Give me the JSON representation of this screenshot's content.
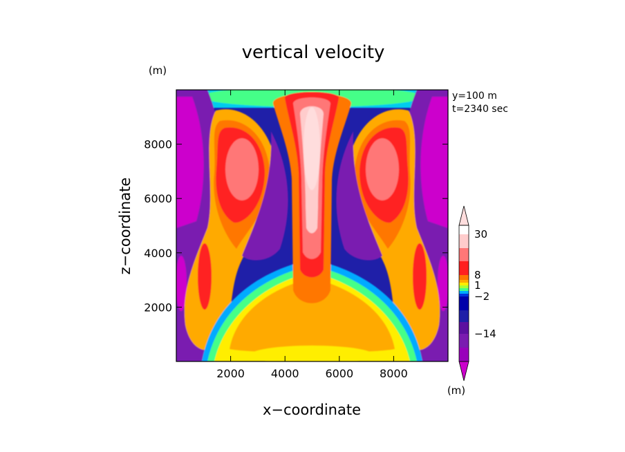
{
  "chart_data": {
    "type": "heatmap",
    "title": "vertical velocity",
    "xlabel": "x−coordinate",
    "ylabel": "z−coordinate",
    "y_unit": "(m)",
    "x_unit": "(m)",
    "info_lines": [
      "y=100 m",
      "t=2340 sec"
    ],
    "xlim": [
      0,
      10000
    ],
    "ylim": [
      0,
      10000
    ],
    "x_ticks": [
      2000,
      4000,
      6000,
      8000
    ],
    "y_ticks": [
      2000,
      4000,
      6000,
      8000
    ],
    "x_tick_labels": [
      "2000",
      "4000",
      "6000",
      "8000"
    ],
    "y_tick_labels": [
      "2000",
      "4000",
      "6000",
      "8000"
    ],
    "colorbar": {
      "levels": [
        -30,
        -22,
        -14,
        -8,
        -4,
        -2,
        -1,
        -0.5,
        0.5,
        1,
        2,
        4,
        8,
        14,
        22,
        30
      ],
      "colors": [
        "#cc00cc",
        "#9900bb",
        "#7a1bb0",
        "#5c10a0",
        "#1f1fa8",
        "#0000aa",
        "#0033dd",
        "#00aaff",
        "#44ff88",
        "#aaff33",
        "#ffee00",
        "#ffaa00",
        "#ff7700",
        "#ff2020",
        "#ff7777",
        "#ffcccc",
        "#ffdddd"
      ],
      "labels": [
        {
          "text": "30",
          "value": 30
        },
        {
          "text": "8",
          "value": 8
        },
        {
          "text": "1",
          "value": 1
        },
        {
          "text": "−2",
          "value": -2
        },
        {
          "text": "−14",
          "value": -14
        }
      ]
    },
    "field_features": [
      {
        "name": "central updraft",
        "x": 5000,
        "z": 7500,
        "value": 30
      },
      {
        "name": "left updraft core",
        "x": 2100,
        "z": 6500,
        "value": 20
      },
      {
        "name": "right updraft core",
        "x": 7900,
        "z": 6500,
        "value": 20
      },
      {
        "name": "left edge downdraft",
        "x": 150,
        "z": 6500,
        "value": -30
      },
      {
        "name": "right edge downdraft",
        "x": 9850,
        "z": 6500,
        "value": -30
      },
      {
        "name": "lower updraft dome",
        "x": 5000,
        "z": 1500,
        "value": 6
      }
    ]
  }
}
